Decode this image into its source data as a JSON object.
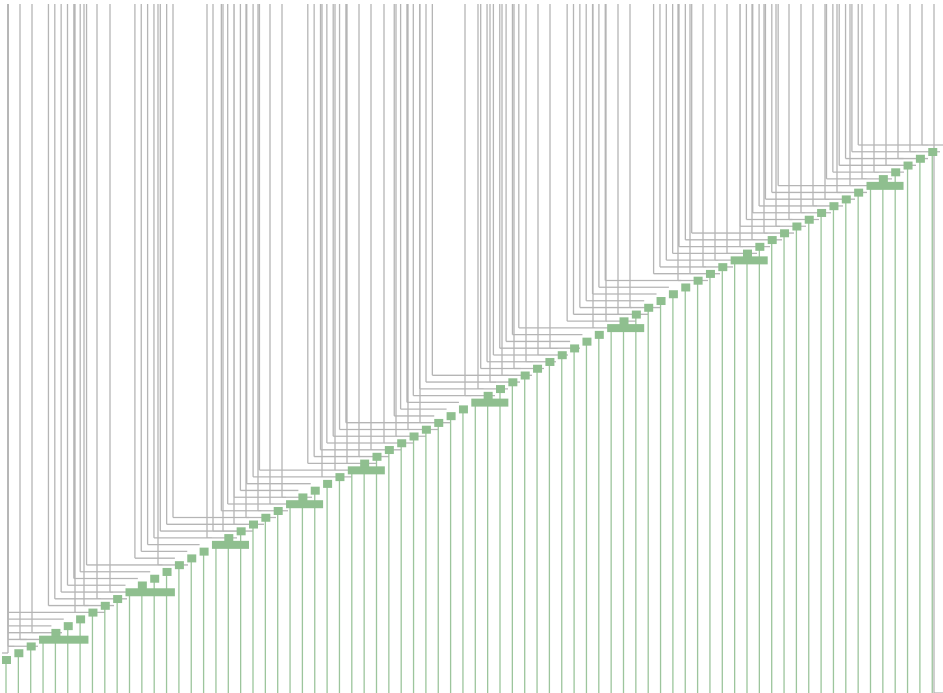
{
  "diagram": {
    "type": "staircase-tree",
    "description_visible_text": "",
    "colors": {
      "background": "#ffffff",
      "gray_line": "#b5b5b5",
      "green_line": "#9cc59c",
      "green_step": "#8fbf8f"
    }
  }
}
